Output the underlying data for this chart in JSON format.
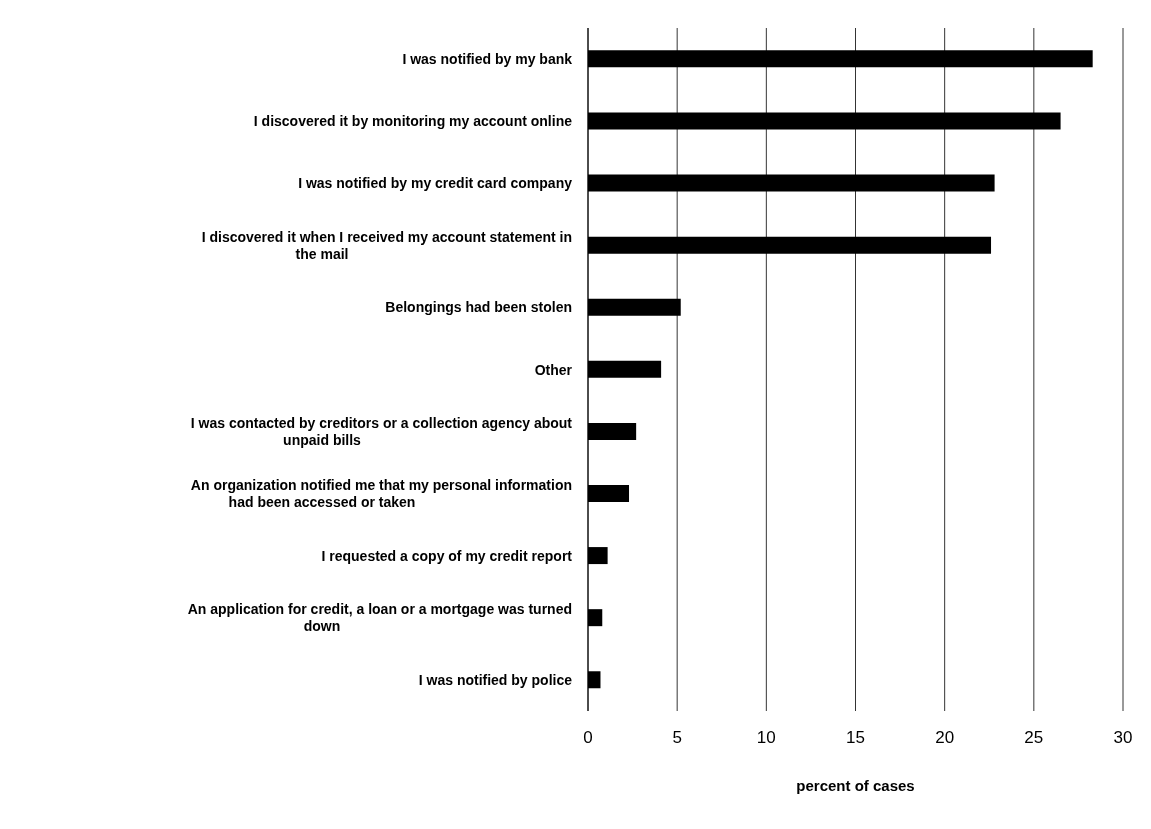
{
  "chart_data": {
    "type": "bar",
    "orientation": "horizontal",
    "xlabel": "percent of cases",
    "categories": [
      "I was notified by my bank",
      "I discovered it by monitoring my account online",
      "I was notified by my credit card company",
      "I discovered it when I received my account statement in the mail",
      "Belongings had been stolen",
      "Other",
      "I was contacted by creditors or a collection agency about unpaid bills",
      "An organization notified me that my personal information had been accessed or taken",
      "I requested a copy of my credit report",
      "An application for credit, a loan or a mortgage was turned down",
      "I was notified by police"
    ],
    "values": [
      28.3,
      26.5,
      22.8,
      22.6,
      5.2,
      4.1,
      2.7,
      2.3,
      1.1,
      0.8,
      0.7
    ],
    "color": "#000000",
    "xlim": [
      0,
      30
    ],
    "xticks": [
      0,
      5,
      10,
      15,
      20,
      25,
      30
    ],
    "grid": "x"
  }
}
